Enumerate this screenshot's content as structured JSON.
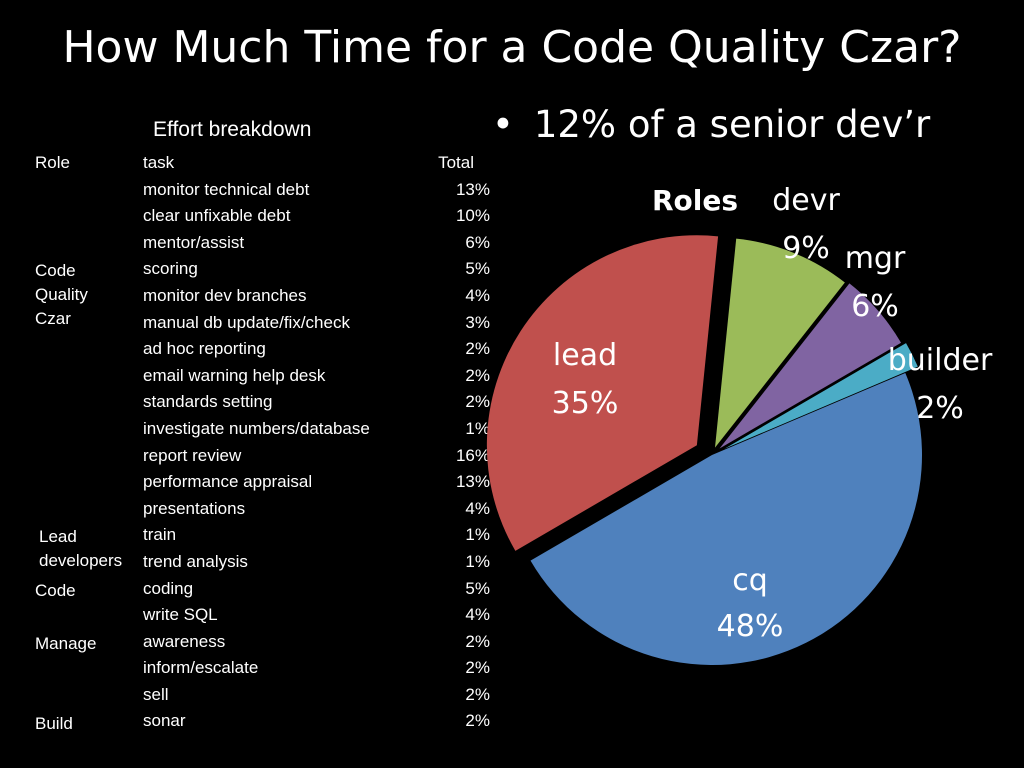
{
  "slide": {
    "title": "How Much Time for a Code Quality Czar?",
    "bullet": "12% of a senior dev’r"
  },
  "table": {
    "title": "Effort breakdown",
    "header": {
      "role": "Role",
      "task": "task",
      "total": "Total"
    },
    "roles": [
      {
        "label": "Code\nQuality\nCzar",
        "start_row": 4
      },
      {
        "label": "Lead\ndevelopers",
        "start_row": 14
      },
      {
        "label": "Code",
        "start_row": 16
      },
      {
        "label": "Manage",
        "start_row": 18
      },
      {
        "label": "Build",
        "start_row": 21
      }
    ],
    "rows": [
      {
        "task": "monitor technical debt",
        "total": "13%"
      },
      {
        "task": "clear unfixable debt",
        "total": "10%"
      },
      {
        "task": "mentor/assist",
        "total": "6%"
      },
      {
        "task": "scoring",
        "total": "5%"
      },
      {
        "task": "monitor dev branches",
        "total": "4%"
      },
      {
        "task": "manual db update/fix/check",
        "total": "3%"
      },
      {
        "task": "ad hoc reporting",
        "total": "2%"
      },
      {
        "task": "email warning help desk",
        "total": "2%"
      },
      {
        "task": "standards setting",
        "total": "2%"
      },
      {
        "task": "investigate numbers/database",
        "total": "1%"
      },
      {
        "task": "report review",
        "total": "16%"
      },
      {
        "task": "performance appraisal",
        "total": "13%"
      },
      {
        "task": "presentations",
        "total": "4%"
      },
      {
        "task": "train",
        "total": "1%"
      },
      {
        "task": "trend analysis",
        "total": "1%"
      },
      {
        "task": "coding",
        "total": "5%"
      },
      {
        "task": "write SQL",
        "total": "4%"
      },
      {
        "task": "awareness",
        "total": "2%"
      },
      {
        "task": "inform/escalate",
        "total": "2%"
      },
      {
        "task": "sell",
        "total": "2%"
      },
      {
        "task": "sonar",
        "total": "2%"
      }
    ]
  },
  "chart_data": {
    "type": "pie",
    "title": "Roles",
    "slices": [
      {
        "name": "cq",
        "label": "48%",
        "value": 48,
        "color": "#4f81bd"
      },
      {
        "name": "lead",
        "label": "35%",
        "value": 35,
        "color": "#c0504d"
      },
      {
        "name": "devr",
        "label": "9%",
        "value": 9,
        "color": "#9bbb59"
      },
      {
        "name": "mgr",
        "label": "6%",
        "value": 6,
        "color": "#8064a2"
      },
      {
        "name": "builder",
        "label": "2%",
        "value": 2,
        "color": "#4bacc6"
      }
    ]
  }
}
